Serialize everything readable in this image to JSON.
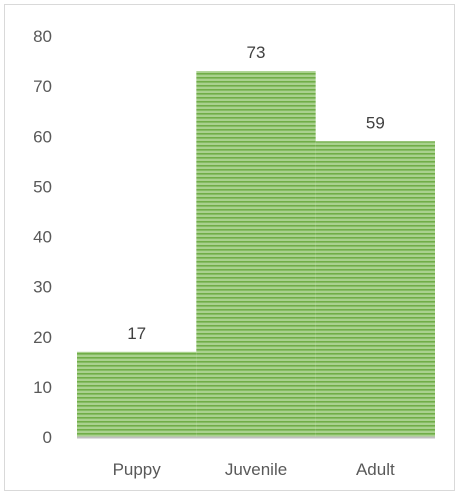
{
  "chart_data": {
    "type": "bar",
    "categories": [
      "Puppy",
      "Juvenile",
      "Adult"
    ],
    "values": [
      17,
      73,
      59
    ],
    "data_labels": [
      "17",
      "73",
      "59"
    ],
    "ylim": [
      0,
      80
    ],
    "yticks": [
      0,
      10,
      20,
      30,
      40,
      50,
      60,
      70,
      80
    ],
    "ytick_labels": [
      "0",
      "10",
      "20",
      "30",
      "40",
      "50",
      "60",
      "70",
      "80"
    ],
    "title": "",
    "xlabel": "",
    "ylabel": "",
    "grid": false,
    "legend": "none",
    "bar_gap": 0,
    "colors": {
      "bar_fill": "#a9d18e",
      "bar_stripe": "#70ad47",
      "axis_line": "#bfbfbf",
      "frame": "#d9d9d9",
      "tick_text": "#595959",
      "label_text": "#404040"
    }
  }
}
